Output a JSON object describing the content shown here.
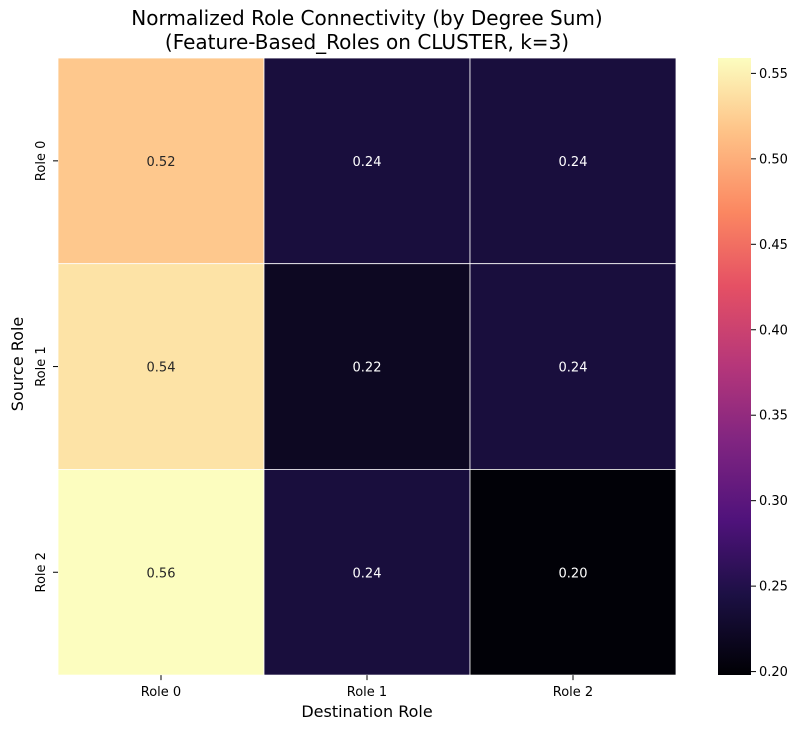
{
  "chart_data": {
    "type": "heatmap",
    "title": "Normalized Role Connectivity (by Degree Sum)",
    "subtitle": "(Feature-Based_Roles on CLUSTER, k=3)",
    "xlabel": "Destination Role",
    "ylabel": "Source Role",
    "x_categories": [
      "Role 0",
      "Role 1",
      "Role 2"
    ],
    "y_categories": [
      "Role 0",
      "Role 1",
      "Role 2"
    ],
    "values": [
      [
        0.52,
        0.24,
        0.24
      ],
      [
        0.54,
        0.22,
        0.24
      ],
      [
        0.56,
        0.24,
        0.2
      ]
    ],
    "value_labels": [
      [
        "0.52",
        "0.24",
        "0.24"
      ],
      [
        "0.54",
        "0.22",
        "0.24"
      ],
      [
        "0.56",
        "0.24",
        "0.20"
      ]
    ],
    "colormap": "magma",
    "colorbar": {
      "range": [
        0.198,
        0.559
      ],
      "ticks": [
        0.2,
        0.25,
        0.3,
        0.35,
        0.4,
        0.45,
        0.5,
        0.55
      ],
      "tick_labels": [
        "0.20",
        "0.25",
        "0.30",
        "0.35",
        "0.40",
        "0.45",
        "0.50",
        "0.55"
      ]
    },
    "cell_border_color": "#ffffff",
    "grid": false
  }
}
